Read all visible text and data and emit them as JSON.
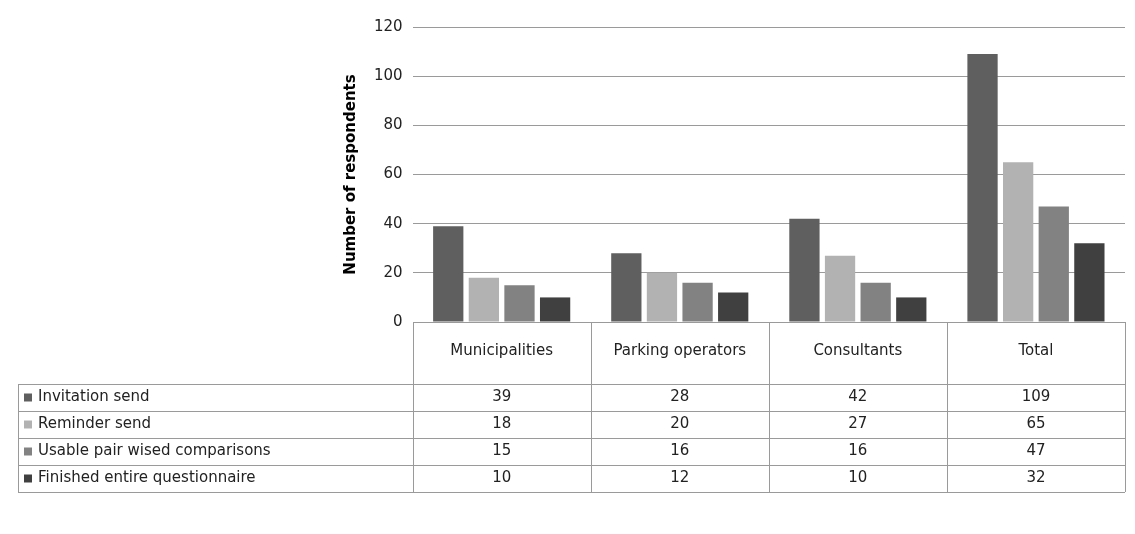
{
  "chart_data": {
    "type": "bar",
    "ylabel": "Number of respondents",
    "categories": [
      "Municipalities",
      "Parking operators",
      "Consultants",
      "Total"
    ],
    "series": [
      {
        "name": "Invitation send",
        "color": "#5f5f5f",
        "values": [
          39,
          28,
          42,
          109
        ]
      },
      {
        "name": "Reminder send",
        "color": "#b2b2b2",
        "values": [
          18,
          20,
          27,
          65
        ]
      },
      {
        "name": "Usable pair wised comparisons",
        "color": "#828282",
        "values": [
          15,
          16,
          16,
          47
        ]
      },
      {
        "name": "Finished entire questionnaire",
        "color": "#404040",
        "values": [
          10,
          12,
          10,
          32
        ]
      }
    ],
    "ylim": [
      0,
      120
    ],
    "yticks": [
      0,
      20,
      40,
      60,
      80,
      100,
      120
    ],
    "grid": "y",
    "legend": "bottom",
    "data_labels": true
  }
}
